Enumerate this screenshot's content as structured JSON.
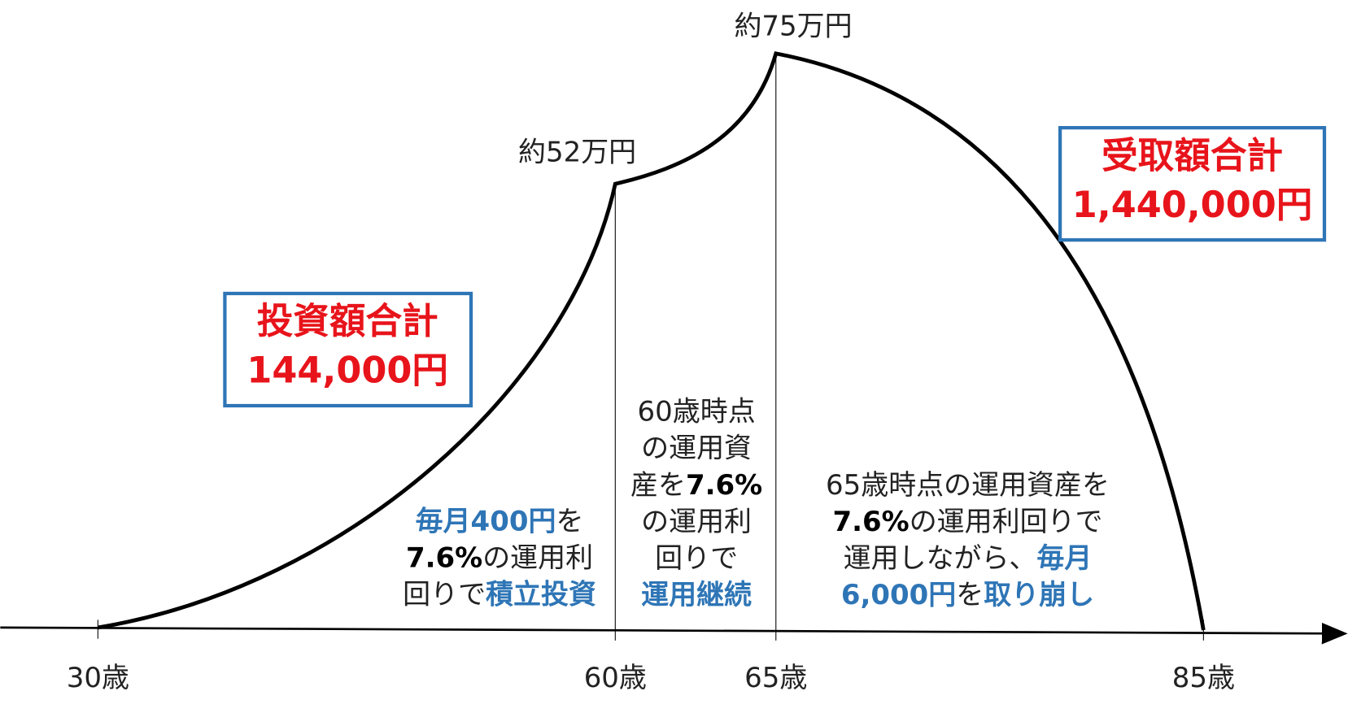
{
  "axis_labels": [
    "30歳",
    "60歳",
    "65歳",
    "85歳"
  ],
  "peaks": [
    "約52万円",
    "約75万円"
  ],
  "boxes": [
    {
      "title": "投資額合計",
      "amount": "144,000円"
    },
    {
      "title": "受取額合計",
      "amount": "1,440,000円"
    }
  ],
  "phases": [
    {
      "lines": [
        [
          {
            "text": "毎月400円",
            "style": "blue"
          },
          {
            "text": "を"
          }
        ],
        [
          {
            "text": "7.6%",
            "style": "bold"
          },
          {
            "text": "の運用利"
          }
        ],
        [
          {
            "text": "回りで"
          },
          {
            "text": "積立投資",
            "style": "blue"
          }
        ]
      ]
    },
    {
      "lines": [
        [
          {
            "text": "60歳時点"
          }
        ],
        [
          {
            "text": "の運用資"
          }
        ],
        [
          {
            "text": "産を"
          },
          {
            "text": "7.6%",
            "style": "bold"
          }
        ],
        [
          {
            "text": "の運用利"
          }
        ],
        [
          {
            "text": "回りで"
          }
        ],
        [
          {
            "text": "運用継続",
            "style": "blue"
          }
        ]
      ]
    },
    {
      "lines": [
        [
          {
            "text": "65歳時点の運用資産を"
          }
        ],
        [
          {
            "text": "7.6%",
            "style": "bold"
          },
          {
            "text": "の運用利回りで"
          }
        ],
        [
          {
            "text": "運用しながら、"
          },
          {
            "text": "毎月",
            "style": "blue"
          }
        ],
        [
          {
            "text": "6,000円",
            "style": "blue"
          },
          {
            "text": "を"
          },
          {
            "text": "取り崩し",
            "style": "blue"
          }
        ]
      ]
    }
  ]
}
